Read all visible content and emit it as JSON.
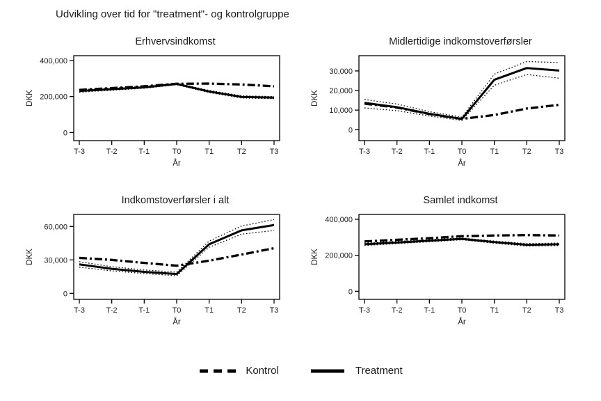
{
  "figure": {
    "title": "Udvikling over tid for \"treatment\"- og kontrolgruppe"
  },
  "legend": {
    "items": [
      {
        "label": "Kontrol",
        "style": "dashed"
      },
      {
        "label": "Treatment",
        "style": "solid"
      }
    ]
  },
  "colors": {
    "line": "#000000",
    "text": "#1a1a1a",
    "background": "#ffffff"
  },
  "chart_data": [
    {
      "type": "line",
      "title": "Erhvervsindkomst",
      "xlabel": "År",
      "ylabel": "DKK",
      "categories": [
        "T-3",
        "T-2",
        "T-1",
        "T0",
        "T1",
        "T2",
        "T3"
      ],
      "yticks": [
        0,
        200000,
        400000
      ],
      "ylim": [
        -45000,
        427000
      ],
      "grid": false,
      "series": [
        {
          "name": "Treatment CI upper",
          "style": "dotted",
          "values": [
            238000,
            247000,
            256000,
            274000,
            234000,
            204000,
            200000
          ]
        },
        {
          "name": "Treatment CI lower",
          "style": "dotted",
          "values": [
            224000,
            235000,
            246000,
            266000,
            222000,
            192000,
            188000
          ]
        },
        {
          "name": "Kontrol",
          "style": "dashdot",
          "values": [
            237000,
            247000,
            257000,
            271000,
            272000,
            267000,
            257000
          ]
        },
        {
          "name": "Treatment",
          "style": "solid",
          "values": [
            231000,
            241000,
            251000,
            270000,
            228000,
            198000,
            194000
          ]
        }
      ]
    },
    {
      "type": "line",
      "title": "Midlertidige indkomstoverførsler",
      "xlabel": "År",
      "ylabel": "DKK",
      "categories": [
        "T-3",
        "T-2",
        "T-1",
        "T0",
        "T1",
        "T2",
        "T3"
      ],
      "yticks": [
        0,
        10000,
        20000,
        30000
      ],
      "ylim": [
        -5600,
        37800
      ],
      "grid": false,
      "series": [
        {
          "name": "Treatment CI upper",
          "style": "dotted",
          "values": [
            15400,
            13100,
            9200,
            6400,
            28400,
            34800,
            34300
          ]
        },
        {
          "name": "Treatment CI lower",
          "style": "dotted",
          "values": [
            11100,
            9700,
            7000,
            4700,
            22700,
            28200,
            26300
          ]
        },
        {
          "name": "Kontrol",
          "style": "dashdot",
          "values": [
            13300,
            11300,
            8000,
            5500,
            7500,
            10800,
            12700
          ]
        },
        {
          "name": "Treatment",
          "style": "solid",
          "values": [
            13700,
            11500,
            8100,
            5500,
            25500,
            31500,
            30200
          ]
        }
      ]
    },
    {
      "type": "line",
      "title": "Indkomstoverførsler i alt",
      "xlabel": "År",
      "ylabel": "DKK",
      "categories": [
        "T-3",
        "T-2",
        "T-1",
        "T0",
        "T1",
        "T2",
        "T3"
      ],
      "yticks": [
        0,
        30000,
        60000
      ],
      "ylim": [
        -5400,
        70800
      ],
      "grid": false,
      "series": [
        {
          "name": "Treatment CI upper",
          "style": "dotted",
          "values": [
            28400,
            23900,
            21000,
            19000,
            46900,
            60400,
            66200
          ]
        },
        {
          "name": "Treatment CI lower",
          "style": "dotted",
          "values": [
            23500,
            20200,
            17800,
            15800,
            41300,
            53100,
            56400
          ]
        },
        {
          "name": "Kontrol",
          "style": "dashdot",
          "values": [
            31800,
            30000,
            27300,
            24800,
            29300,
            34800,
            40500
          ]
        },
        {
          "name": "Treatment",
          "style": "solid",
          "values": [
            26000,
            22000,
            19300,
            17300,
            44000,
            56500,
            61300
          ]
        }
      ]
    },
    {
      "type": "line",
      "title": "Samlet indkomst",
      "xlabel": "År",
      "ylabel": "DKK",
      "categories": [
        "T-3",
        "T-2",
        "T-1",
        "T0",
        "T1",
        "T2",
        "T3"
      ],
      "yticks": [
        0,
        200000,
        400000
      ],
      "ylim": [
        -45000,
        427000
      ],
      "grid": false,
      "series": [
        {
          "name": "Treatment CI upper",
          "style": "dotted",
          "values": [
            268000,
            277000,
            287000,
            296000,
            279000,
            265000,
            268000
          ]
        },
        {
          "name": "Treatment CI lower",
          "style": "dotted",
          "values": [
            254000,
            265000,
            275000,
            286000,
            267000,
            251000,
            254000
          ]
        },
        {
          "name": "Kontrol",
          "style": "dashdot",
          "values": [
            277000,
            286000,
            295000,
            306000,
            310000,
            312000,
            310000
          ]
        },
        {
          "name": "Treatment",
          "style": "solid",
          "values": [
            261000,
            271000,
            281000,
            291000,
            273000,
            258000,
            261000
          ]
        }
      ]
    }
  ]
}
